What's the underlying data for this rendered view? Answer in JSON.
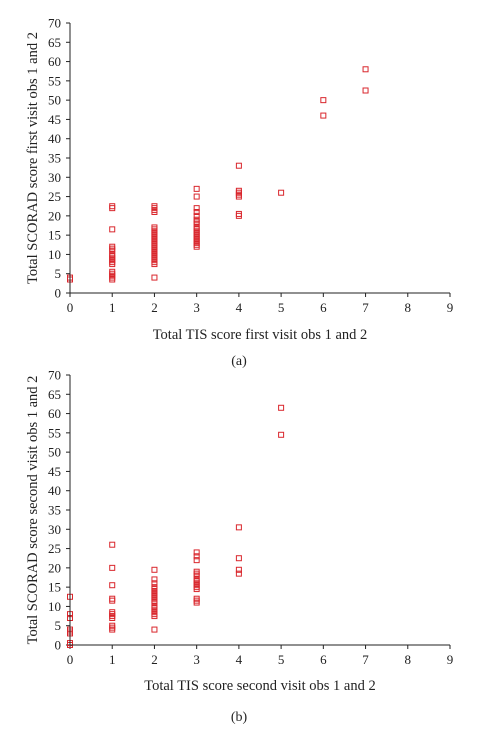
{
  "chart_data": [
    {
      "type": "scatter",
      "panel_label": "(a)",
      "xlabel": "Total TIS score first visit obs 1 and 2",
      "ylabel": "Total SCORAD score first visit obs 1 and 2",
      "xlim": [
        0,
        9
      ],
      "ylim": [
        0,
        70
      ],
      "xticks": [
        0,
        1,
        2,
        3,
        4,
        5,
        6,
        7,
        8,
        9
      ],
      "yticks": [
        0,
        5,
        10,
        15,
        20,
        25,
        30,
        35,
        40,
        45,
        50,
        55,
        60,
        65,
        70
      ],
      "grid": false,
      "marker": "open-square",
      "marker_color": "#d9262c",
      "x": [
        0,
        0,
        1,
        1,
        1,
        1,
        1,
        1,
        1,
        1,
        1,
        1,
        1,
        1,
        1,
        1,
        1,
        1,
        1,
        2,
        2,
        2,
        2,
        2,
        2,
        2,
        2,
        2,
        2,
        2,
        2,
        2,
        2,
        2,
        2,
        2,
        2,
        2,
        2,
        2,
        2,
        2,
        2,
        2,
        3,
        3,
        3,
        3,
        3,
        3,
        3,
        3,
        3,
        3,
        3,
        3,
        3,
        3,
        3,
        3,
        3,
        3,
        3,
        4,
        4,
        4,
        4,
        4,
        4,
        4,
        5,
        6,
        6,
        7,
        7
      ],
      "y": [
        3.5,
        4,
        3.5,
        4,
        4.5,
        5,
        5.5,
        7.5,
        8,
        8.5,
        9,
        9.5,
        10,
        11,
        11.5,
        12,
        16.5,
        22,
        22.5,
        4,
        7.5,
        8,
        8.5,
        9,
        9.5,
        10,
        10.5,
        11,
        11.5,
        12,
        12.5,
        13,
        13.5,
        14,
        14.5,
        15,
        15.5,
        16,
        16.5,
        21,
        22,
        22.5,
        21.5,
        17,
        12,
        12.5,
        13,
        13.5,
        14,
        14.5,
        15,
        15.5,
        16,
        16.5,
        17,
        18,
        19,
        20,
        21,
        22,
        25,
        27,
        18.5,
        20,
        20.5,
        25,
        26,
        26.5,
        33,
        25.5,
        26,
        46,
        50,
        52.5,
        58
      ]
    },
    {
      "type": "scatter",
      "panel_label": "(b)",
      "xlabel": "Total TIS score second visit obs 1 and 2",
      "ylabel": "Total SCORAD score second visit obs 1 and 2",
      "xlim": [
        0,
        9
      ],
      "ylim": [
        0,
        70
      ],
      "xticks": [
        0,
        1,
        2,
        3,
        4,
        5,
        6,
        7,
        8,
        9
      ],
      "yticks": [
        0,
        5,
        10,
        15,
        20,
        25,
        30,
        35,
        40,
        45,
        50,
        55,
        60,
        65,
        70
      ],
      "grid": false,
      "marker": "open-square",
      "marker_color": "#d9262c",
      "x": [
        0,
        0,
        0,
        0,
        0,
        0,
        0,
        0,
        1,
        1,
        1,
        1,
        1,
        1,
        1,
        1,
        1,
        1,
        1,
        1,
        2,
        2,
        2,
        2,
        2,
        2,
        2,
        2,
        2,
        2,
        2,
        2,
        2,
        2,
        2,
        2,
        2,
        2,
        2,
        3,
        3,
        3,
        3,
        3,
        3,
        3,
        3,
        3,
        3,
        3,
        3,
        3,
        3,
        3,
        4,
        4,
        4,
        4,
        5,
        5
      ],
      "y": [
        0,
        0.5,
        3,
        3.5,
        4,
        7,
        8,
        12.5,
        4,
        4.5,
        5,
        7,
        7.5,
        8,
        8.5,
        11.5,
        12,
        15.5,
        20,
        26,
        4,
        7.5,
        8,
        8.5,
        9,
        9.5,
        10,
        11,
        11.5,
        12,
        12.5,
        13,
        13.5,
        14,
        14.5,
        15,
        16,
        17,
        19.5,
        11,
        11.5,
        12,
        14.5,
        15,
        15.5,
        16,
        16.5,
        17,
        18,
        18.5,
        19,
        22,
        23,
        24,
        18.5,
        19.5,
        22.5,
        30.5,
        54.5,
        61.5
      ]
    }
  ]
}
